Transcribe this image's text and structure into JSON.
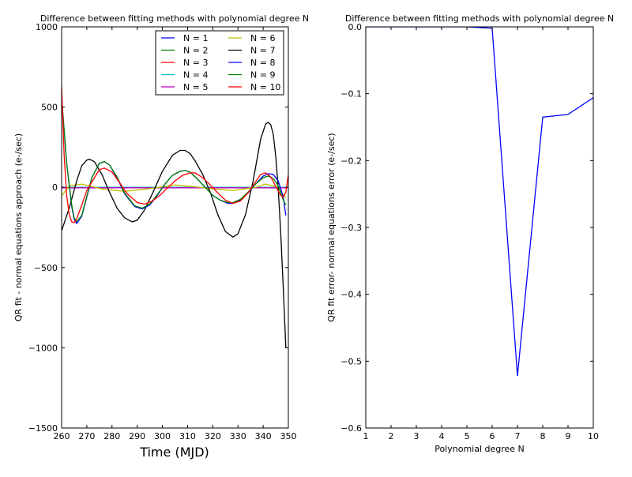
{
  "chart_data": [
    {
      "type": "line",
      "title": "Difference between fitting methods with polynomial degree N",
      "xlabel": "Time (MJD)",
      "ylabel": "QR fit - normal equations approach (e-/sec)",
      "xlim": [
        260,
        350
      ],
      "ylim": [
        -1500,
        1000
      ],
      "xticks": [
        "260",
        "270",
        "280",
        "290",
        "300",
        "310",
        "320",
        "330",
        "340",
        "350"
      ],
      "yticks": [
        "1000",
        "500",
        "0",
        "−500",
        "−1000",
        "−1500"
      ],
      "legend_position": "top-right",
      "grid": false,
      "series": [
        {
          "name": "N = 1",
          "color": "#0000ff",
          "x": [
            260,
            350
          ],
          "y": [
            0,
            0
          ]
        },
        {
          "name": "N = 2",
          "color": "#008000",
          "x": [
            260,
            350
          ],
          "y": [
            0,
            0
          ]
        },
        {
          "name": "N = 3",
          "color": "#ff0000",
          "x": [
            260,
            350
          ],
          "y": [
            0,
            0
          ]
        },
        {
          "name": "N = 4",
          "color": "#00bfbf",
          "x": [
            260,
            350
          ],
          "y": [
            0,
            0
          ]
        },
        {
          "name": "N = 5",
          "color": "#bf00bf",
          "x": [
            260,
            350
          ],
          "y": [
            -3,
            -3
          ]
        },
        {
          "name": "N = 6",
          "color": "#bfbf00",
          "x": [
            260,
            263,
            268,
            276,
            285,
            295,
            305,
            315,
            320,
            328,
            337,
            341,
            345,
            349
          ],
          "y": [
            -55,
            10,
            20,
            -10,
            -25,
            -8,
            15,
            0,
            -10,
            -20,
            0,
            20,
            5,
            -60
          ]
        },
        {
          "name": "N = 7",
          "color": "#000000",
          "x": [
            260,
            263,
            266,
            268,
            270,
            271,
            273,
            276,
            279,
            282,
            285,
            288,
            290,
            293,
            296,
            300,
            304,
            307,
            309,
            311,
            313,
            316,
            319,
            322,
            325,
            328,
            330,
            333,
            336,
            339,
            341,
            342,
            343,
            344,
            345,
            346,
            347,
            348,
            349
          ],
          "y": [
            -270,
            -130,
            40,
            135,
            170,
            175,
            160,
            80,
            -30,
            -130,
            -190,
            -215,
            -205,
            -140,
            -40,
            100,
            200,
            230,
            230,
            210,
            165,
            80,
            -30,
            -170,
            -275,
            -310,
            -290,
            -170,
            40,
            300,
            395,
            405,
            390,
            330,
            190,
            -10,
            -290,
            -630,
            -1000
          ]
        },
        {
          "name": "N = 8",
          "color": "#0000ff",
          "x": [
            260,
            262,
            264,
            265,
            266,
            268,
            270,
            272,
            275,
            277,
            279,
            282,
            285,
            289,
            292,
            295,
            298,
            301,
            304,
            307,
            309,
            311,
            314,
            317,
            320,
            323,
            326,
            328,
            331,
            334,
            337,
            340,
            342,
            344,
            346,
            348,
            349
          ],
          "y": [
            560,
            150,
            -120,
            -200,
            -225,
            -180,
            -60,
            60,
            150,
            160,
            140,
            60,
            -40,
            -120,
            -135,
            -110,
            -50,
            20,
            75,
            100,
            105,
            95,
            50,
            0,
            -50,
            -80,
            -100,
            -100,
            -80,
            -35,
            20,
            70,
            85,
            80,
            40,
            -60,
            -175
          ]
        },
        {
          "name": "N = 9",
          "color": "#008000",
          "x": [
            260,
            262,
            264,
            265,
            266,
            268,
            270,
            272,
            275,
            277,
            279,
            282,
            285,
            289,
            292,
            295,
            298,
            301,
            304,
            307,
            309,
            311,
            314,
            317,
            320,
            323,
            326,
            328,
            331,
            334,
            337,
            340,
            342,
            344,
            346,
            348,
            349
          ],
          "y": [
            560,
            150,
            -110,
            -190,
            -215,
            -175,
            -55,
            60,
            150,
            160,
            140,
            65,
            -35,
            -115,
            -130,
            -105,
            -45,
            20,
            75,
            100,
            105,
            95,
            50,
            0,
            -50,
            -80,
            -95,
            -95,
            -75,
            -30,
            20,
            60,
            70,
            55,
            10,
            -80,
            -110
          ]
        },
        {
          "name": "N = 10",
          "color": "#ff0000",
          "x": [
            260,
            261,
            262,
            263,
            264,
            265,
            266,
            268,
            270,
            273,
            275,
            277,
            280,
            283,
            286,
            290,
            293,
            296,
            299,
            302,
            305,
            308,
            311,
            313,
            316,
            319,
            322,
            325,
            328,
            331,
            334,
            337,
            339,
            341,
            343,
            345,
            347,
            348,
            349,
            350
          ],
          "y": [
            630,
            200,
            -50,
            -170,
            -215,
            -220,
            -195,
            -110,
            -20,
            60,
            110,
            120,
            95,
            30,
            -40,
            -95,
            -105,
            -85,
            -50,
            -5,
            40,
            75,
            90,
            90,
            60,
            15,
            -35,
            -80,
            -100,
            -85,
            -35,
            35,
            80,
            90,
            65,
            5,
            -50,
            -60,
            -30,
            80
          ]
        }
      ]
    },
    {
      "type": "line",
      "title": "Difference between fitting methods with polynomial degree N",
      "xlabel": "Polynomial degree N",
      "ylabel": "QR fit error- normal equations error (e-/sec)",
      "xlim": [
        1,
        10
      ],
      "ylim": [
        -0.6,
        0.0
      ],
      "xticks": [
        "1",
        "2",
        "3",
        "4",
        "5",
        "6",
        "7",
        "8",
        "9",
        "10"
      ],
      "yticks": [
        "0.0",
        "−0.1",
        "−0.2",
        "−0.3",
        "−0.4",
        "−0.5",
        "−0.6"
      ],
      "grid": false,
      "series": [
        {
          "color": "#0000ff",
          "x": [
            1,
            2,
            3,
            4,
            5,
            6,
            7,
            8,
            9,
            10
          ],
          "y": [
            0.0,
            0.0,
            0.0,
            0.0,
            0.0,
            -0.002,
            -0.522,
            -0.135,
            -0.131,
            -0.106
          ]
        }
      ]
    }
  ]
}
